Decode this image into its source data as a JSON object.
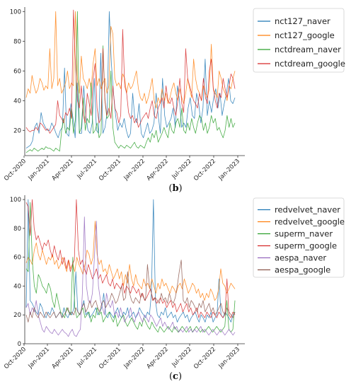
{
  "chart_data": [
    {
      "type": "line",
      "panel_label": "(b)",
      "x_ticks": [
        "Oct-2020",
        "Jan-2021",
        "Apr-2021",
        "Jul-2021",
        "Oct-2021",
        "Jan-2022",
        "Apr-2022",
        "Jul-2022",
        "Oct-2022",
        "Jan-2023"
      ],
      "y_ticks": [
        "20",
        "40",
        "60",
        "80",
        "100"
      ],
      "ylim": [
        3,
        103
      ],
      "grid": false,
      "legend_position": "right",
      "colors": {
        "blue": "#1f77b4",
        "orange": "#ff7f0e",
        "green": "#2ca02c",
        "red": "#d62728"
      },
      "series": [
        {
          "name": "nct127_naver",
          "color": "#1f77b4",
          "values": [
            8,
            9,
            10,
            13,
            22,
            25,
            18,
            32,
            25,
            22,
            20,
            20,
            25,
            22,
            18,
            15,
            20,
            22,
            62,
            18,
            16,
            38,
            28,
            15,
            52,
            18,
            18,
            50,
            30,
            20,
            18,
            25,
            55,
            20,
            18,
            72,
            18,
            22,
            32,
            100,
            65,
            45,
            30,
            20,
            25,
            22,
            28,
            20,
            15,
            18,
            45,
            28,
            25,
            38,
            18,
            15,
            20,
            25,
            18,
            20,
            25,
            45,
            30,
            18,
            55,
            30,
            22,
            25,
            28,
            35,
            22,
            50,
            40,
            22,
            25,
            22,
            35,
            42,
            30,
            28,
            45,
            38,
            25,
            35,
            68,
            30,
            40,
            32,
            42,
            48,
            35,
            45,
            30,
            38,
            45,
            55,
            40,
            38,
            42
          ]
        },
        {
          "name": "nct127_google",
          "color": "#ff7f0e",
          "values": [
            42,
            48,
            45,
            57,
            50,
            45,
            48,
            55,
            52,
            47,
            50,
            48,
            75,
            48,
            55,
            100,
            50,
            55,
            45,
            48,
            52,
            60,
            48,
            52,
            50,
            100,
            55,
            45,
            70,
            55,
            52,
            48,
            55,
            48,
            65,
            75,
            50,
            55,
            48,
            52,
            55,
            45,
            50,
            90,
            85,
            55,
            50,
            52,
            48,
            58,
            55,
            45,
            52,
            48,
            50,
            55,
            60,
            48,
            42,
            40,
            45,
            38,
            42,
            48,
            55,
            40,
            35,
            42,
            38,
            48,
            40,
            45,
            38,
            42,
            48,
            52,
            45,
            40,
            48,
            42,
            38,
            45,
            55,
            48,
            42,
            68,
            55,
            48,
            45,
            40,
            50,
            45,
            42,
            48,
            78,
            48,
            45,
            42,
            60,
            55,
            48,
            45,
            40,
            50,
            48,
            55,
            60
          ]
        },
        {
          "name": "nctdream_naver",
          "color": "#2ca02c",
          "values": [
            5,
            6,
            7,
            6,
            8,
            7,
            6,
            7,
            8,
            7,
            9,
            8,
            8,
            7,
            6,
            8,
            7,
            6,
            20,
            28,
            18,
            22,
            20,
            35,
            18,
            28,
            100,
            18,
            22,
            42,
            20,
            28,
            25,
            52,
            18,
            20,
            25,
            15,
            18,
            77,
            40,
            28,
            30,
            60,
            22,
            12,
            10,
            8,
            10,
            9,
            8,
            10,
            9,
            8,
            10,
            12,
            9,
            8,
            10,
            9,
            8,
            12,
            15,
            12,
            18,
            15,
            20,
            12,
            15,
            18,
            22,
            18,
            15,
            25,
            20,
            18,
            25,
            28,
            22,
            35,
            20,
            18,
            25,
            20,
            28,
            22,
            18,
            25,
            30,
            28,
            20,
            25,
            18,
            22,
            30,
            25,
            28,
            20,
            22,
            18,
            15,
            20,
            30,
            22,
            28,
            22,
            25
          ]
        },
        {
          "name": "nctdream_google",
          "color": "#d62728",
          "values": [
            22,
            20,
            19,
            20,
            20,
            22,
            20,
            25,
            24,
            22,
            20,
            21,
            18,
            20,
            22,
            24,
            40,
            30,
            28,
            25,
            32,
            30,
            35,
            28,
            101,
            65,
            40,
            35,
            50,
            30,
            25,
            45,
            38,
            30,
            55,
            65,
            35,
            25,
            28,
            75,
            40,
            30,
            35,
            28,
            50,
            35,
            32,
            25,
            30,
            88,
            50,
            45,
            32,
            28,
            30,
            25,
            28,
            22,
            25,
            28,
            30,
            32,
            28,
            35,
            40,
            30,
            28,
            35,
            38,
            42,
            35,
            50,
            40,
            38,
            42,
            35,
            30,
            40,
            55,
            38,
            32,
            75,
            55,
            50,
            45,
            40,
            38,
            35,
            45,
            40,
            55,
            42,
            38,
            60,
            68,
            48,
            40,
            35,
            45,
            42,
            55,
            48,
            42,
            50,
            58,
            55,
            48
          ]
        }
      ]
    },
    {
      "type": "line",
      "panel_label": "(c)",
      "x_ticks": [
        "Oct-2020",
        "Jan-2021",
        "Apr-2021",
        "Jul-2021",
        "Oct-2021",
        "Jan-2022",
        "Apr-2022",
        "Jul-2022",
        "Oct-2022",
        "Jan-2023"
      ],
      "y_ticks": [
        "0",
        "20",
        "40",
        "60",
        "80",
        "100"
      ],
      "ylim": [
        0,
        103
      ],
      "grid": false,
      "legend_position": "right",
      "colors": {
        "blue": "#1f77b4",
        "orange": "#ff7f0e",
        "green": "#2ca02c",
        "red": "#d62728",
        "purple": "#9467bd",
        "brown": "#8c564b"
      },
      "series": [
        {
          "name": "redvelvet_naver",
          "color": "#1f77b4",
          "values": [
            25,
            100,
            30,
            28,
            25,
            22,
            20,
            28,
            25,
            20,
            18,
            22,
            20,
            25,
            22,
            18,
            20,
            22,
            18,
            25,
            20,
            18,
            22,
            20,
            25,
            50,
            22,
            20,
            25,
            30,
            20,
            22,
            18,
            20,
            22,
            25,
            20,
            22,
            25,
            35,
            20,
            18,
            22,
            20,
            18,
            22,
            25,
            20,
            18,
            22,
            20,
            25,
            18,
            20,
            22,
            18,
            20,
            25,
            22,
            20,
            18,
            22,
            20,
            35,
            100,
            30,
            20,
            18,
            22,
            20,
            25,
            18,
            20,
            22,
            18,
            20,
            15,
            18,
            20,
            22,
            18,
            20,
            15,
            18,
            20,
            22,
            18,
            15,
            20,
            18,
            15,
            20,
            18,
            22,
            15,
            18,
            20,
            45,
            20,
            18,
            22,
            20,
            18,
            15,
            20,
            22
          ]
        },
        {
          "name": "redvelvet_google",
          "color": "#ff7f0e",
          "values": [
            56,
            60,
            58,
            55,
            65,
            70,
            62,
            58,
            65,
            60,
            55,
            60,
            58,
            62,
            55,
            58,
            52,
            55,
            60,
            55,
            50,
            58,
            52,
            55,
            50,
            60,
            55,
            52,
            48,
            55,
            65,
            62,
            55,
            60,
            85,
            62,
            55,
            58,
            50,
            52,
            48,
            55,
            50,
            45,
            48,
            52,
            45,
            50,
            40,
            48,
            42,
            55,
            45,
            40,
            48,
            42,
            40,
            38,
            45,
            40,
            42,
            38,
            45,
            40,
            35,
            42,
            38,
            45,
            40,
            42,
            38,
            35,
            40,
            38,
            35,
            40,
            42,
            38,
            45,
            40,
            35,
            38,
            42,
            40,
            35,
            38,
            32,
            35,
            30,
            35,
            32,
            38,
            35,
            30,
            32,
            38,
            52,
            42,
            40,
            35,
            38,
            42,
            40,
            38
          ]
        },
        {
          "name": "superm_naver",
          "color": "#2ca02c",
          "values": [
            52,
            50,
            98,
            58,
            40,
            35,
            48,
            45,
            40,
            38,
            35,
            42,
            38,
            30,
            25,
            35,
            28,
            22,
            20,
            18,
            25,
            22,
            20,
            60,
            25,
            18,
            20,
            22,
            25,
            18,
            20,
            22,
            15,
            20,
            18,
            25,
            20,
            22,
            15,
            18,
            20,
            22,
            18,
            15,
            20,
            12,
            15,
            18,
            20,
            15,
            12,
            15,
            18,
            15,
            12,
            10,
            15,
            12,
            18,
            15,
            12,
            10,
            15,
            12,
            10,
            8,
            12,
            10,
            8,
            10,
            12,
            10,
            8,
            12,
            10,
            8,
            10,
            12,
            10,
            8,
            10,
            12,
            8,
            10,
            12,
            10,
            8,
            10,
            8,
            10,
            12,
            10,
            8,
            10,
            12,
            10,
            8,
            10,
            12,
            30,
            10,
            8,
            10,
            30
          ]
        },
        {
          "name": "superm_google",
          "color": "#d62728",
          "values": [
            98,
            95,
            75,
            100,
            80,
            72,
            75,
            70,
            65,
            70,
            68,
            72,
            65,
            60,
            68,
            62,
            58,
            65,
            55,
            60,
            52,
            58,
            50,
            55,
            58,
            100,
            65,
            55,
            58,
            52,
            48,
            55,
            50,
            45,
            48,
            52,
            45,
            48,
            42,
            45,
            48,
            42,
            40,
            45,
            38,
            42,
            40,
            38,
            42,
            35,
            40,
            38,
            35,
            40,
            38,
            35,
            38,
            32,
            35,
            30,
            32,
            35,
            38,
            30,
            32,
            28,
            30,
            32,
            28,
            30,
            25,
            28,
            30,
            25,
            28,
            22,
            25,
            28,
            22,
            25,
            28,
            22,
            25,
            20,
            22,
            25,
            18,
            22,
            20,
            18,
            22,
            20,
            18,
            22,
            20,
            18,
            22,
            20,
            18,
            20,
            45,
            20,
            18,
            22,
            20
          ]
        },
        {
          "name": "aespa_naver",
          "color": "#9467bd",
          "values": [
            25,
            28,
            20,
            25,
            22,
            30,
            20,
            15,
            10,
            8,
            12,
            10,
            8,
            7,
            10,
            8,
            6,
            8,
            10,
            8,
            7,
            5,
            8,
            10,
            6,
            5,
            8,
            10,
            35,
            88,
            40,
            30,
            28,
            35,
            60,
            85,
            40,
            30,
            25,
            20,
            35,
            28,
            25,
            30,
            20,
            22,
            18,
            25,
            20,
            15,
            18,
            20,
            25,
            18,
            15,
            20,
            22,
            18,
            15,
            20,
            18,
            15,
            20,
            18,
            15,
            12,
            15,
            18,
            12,
            15,
            12,
            10,
            12,
            15,
            10,
            12,
            8,
            10,
            8,
            10,
            12,
            8,
            10,
            8,
            10,
            8,
            10,
            12,
            8,
            10,
            8,
            6,
            8,
            10,
            8,
            6,
            8,
            10,
            8,
            6,
            8,
            10,
            8,
            6,
            8
          ]
        },
        {
          "name": "aespa_google",
          "color": "#8c564b",
          "values": [
            20,
            15,
            22,
            18,
            25,
            20,
            18,
            22,
            20,
            18,
            22,
            20,
            18,
            20,
            22,
            18,
            20,
            22,
            18,
            20,
            22,
            25,
            20,
            22,
            20,
            25,
            22,
            20,
            25,
            28,
            22,
            25,
            30,
            25,
            28,
            30,
            25,
            22,
            28,
            30,
            25,
            28,
            30,
            35,
            32,
            28,
            30,
            35,
            40,
            30,
            32,
            50,
            35,
            30,
            28,
            32,
            30,
            28,
            35,
            32,
            30,
            55,
            40,
            35,
            30,
            32,
            30,
            28,
            35,
            30,
            32,
            28,
            35,
            30,
            28,
            32,
            40,
            50,
            58,
            30,
            28,
            32,
            25,
            30,
            28,
            25,
            22,
            28,
            25,
            30,
            22,
            25,
            28,
            22,
            25,
            20,
            22,
            25,
            28,
            22,
            20,
            25,
            22,
            20,
            18,
            22
          ]
        }
      ]
    }
  ]
}
